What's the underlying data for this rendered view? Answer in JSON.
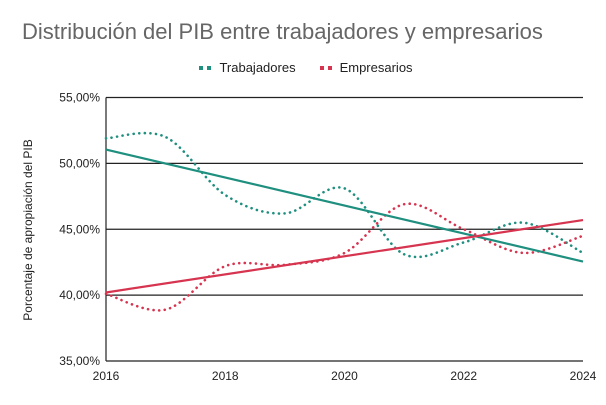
{
  "chart_data": {
    "type": "line",
    "title": "Distribución del PIB entre trabajadores y empresarios",
    "xlabel": "",
    "ylabel": "Porcentaje de apropiación del PIB",
    "x": [
      2016,
      2017,
      2018,
      2019,
      2020,
      2021,
      2022,
      2023,
      2024
    ],
    "xticks": [
      "2016",
      "2018",
      "2020",
      "2022",
      "2024"
    ],
    "xtick_values": [
      2016,
      2018,
      2020,
      2022,
      2024
    ],
    "xlim": [
      2016,
      2024
    ],
    "ylim": [
      35,
      55
    ],
    "ytick_values": [
      35,
      40,
      45,
      50,
      55
    ],
    "yticks": [
      "35,00%",
      "40,00%",
      "45,00%",
      "50,00%",
      "55,00%"
    ],
    "grid": "horizontal",
    "legend_position": "top-center",
    "series": [
      {
        "name": "Trabajadores",
        "color": "#1f8f7f",
        "style": "dotted-smooth",
        "values": [
          51.9,
          52.0,
          47.6,
          46.2,
          48.1,
          43.1,
          44.0,
          45.5,
          43.2
        ]
      },
      {
        "name": "Empresarios",
        "color": "#d6344f",
        "style": "dotted-smooth",
        "values": [
          40.1,
          38.9,
          42.2,
          42.3,
          43.2,
          46.9,
          45.0,
          43.2,
          44.5
        ]
      }
    ],
    "trendlines": [
      {
        "series": "Trabajadores",
        "color": "#1f8f7f",
        "type": "linear",
        "start": [
          2016,
          51.05
        ],
        "end": [
          2024,
          42.55
        ]
      },
      {
        "series": "Empresarios",
        "color": "#d6344f",
        "type": "linear",
        "start": [
          2016,
          40.2
        ],
        "end": [
          2024,
          45.7
        ]
      }
    ]
  }
}
